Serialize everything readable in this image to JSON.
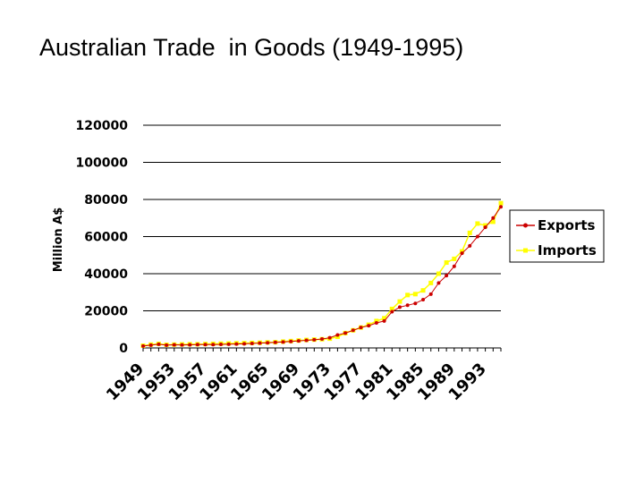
{
  "slide": {
    "title": "Australian Trade  in Goods (1949-1995)"
  },
  "chart_data": {
    "type": "line",
    "title": "",
    "xlabel": "",
    "ylabel": "Million A$",
    "ylim": [
      0,
      120000
    ],
    "yticks": [
      0,
      20000,
      40000,
      60000,
      80000,
      100000,
      120000
    ],
    "xtick_labels": [
      "1949",
      "1953",
      "1957",
      "1961",
      "1965",
      "1969",
      "1973",
      "1977",
      "1981",
      "1985",
      "1989",
      "1993"
    ],
    "grid": true,
    "legend": "right",
    "x": [
      1949,
      1950,
      1951,
      1952,
      1953,
      1954,
      1955,
      1956,
      1957,
      1958,
      1959,
      1960,
      1961,
      1962,
      1963,
      1964,
      1965,
      1966,
      1967,
      1968,
      1969,
      1970,
      1971,
      1972,
      1973,
      1974,
      1975,
      1976,
      1977,
      1978,
      1979,
      1980,
      1981,
      1982,
      1983,
      1984,
      1985,
      1986,
      1987,
      1988,
      1989,
      1990,
      1991,
      1992,
      1993,
      1994,
      1995
    ],
    "series": [
      {
        "name": "Exports",
        "color": "#cc0000",
        "values": [
          1000,
          1500,
          2000,
          1500,
          1700,
          1600,
          1700,
          1800,
          1800,
          1800,
          1900,
          2000,
          2100,
          2200,
          2400,
          2600,
          2800,
          3000,
          3200,
          3500,
          3800,
          4100,
          4400,
          4800,
          5500,
          7000,
          8000,
          9500,
          11000,
          12000,
          13500,
          14500,
          19500,
          22000,
          23000,
          24000,
          26000,
          29000,
          35000,
          39000,
          44000,
          51000,
          55000,
          60000,
          65000,
          70000,
          76000
        ]
      },
      {
        "name": "Imports",
        "color": "#ffff00",
        "values": [
          1200,
          1800,
          2200,
          1700,
          1800,
          1900,
          2000,
          2000,
          2100,
          2200,
          2300,
          2400,
          2500,
          2600,
          2700,
          2800,
          3000,
          3100,
          3400,
          3700,
          4000,
          4300,
          4500,
          4700,
          5000,
          6000,
          8000,
          9500,
          11000,
          12500,
          14500,
          16000,
          21000,
          25000,
          28500,
          29000,
          31000,
          35000,
          40000,
          46000,
          48000,
          52000,
          62000,
          67000,
          66000,
          68000,
          78000
        ]
      }
    ]
  }
}
